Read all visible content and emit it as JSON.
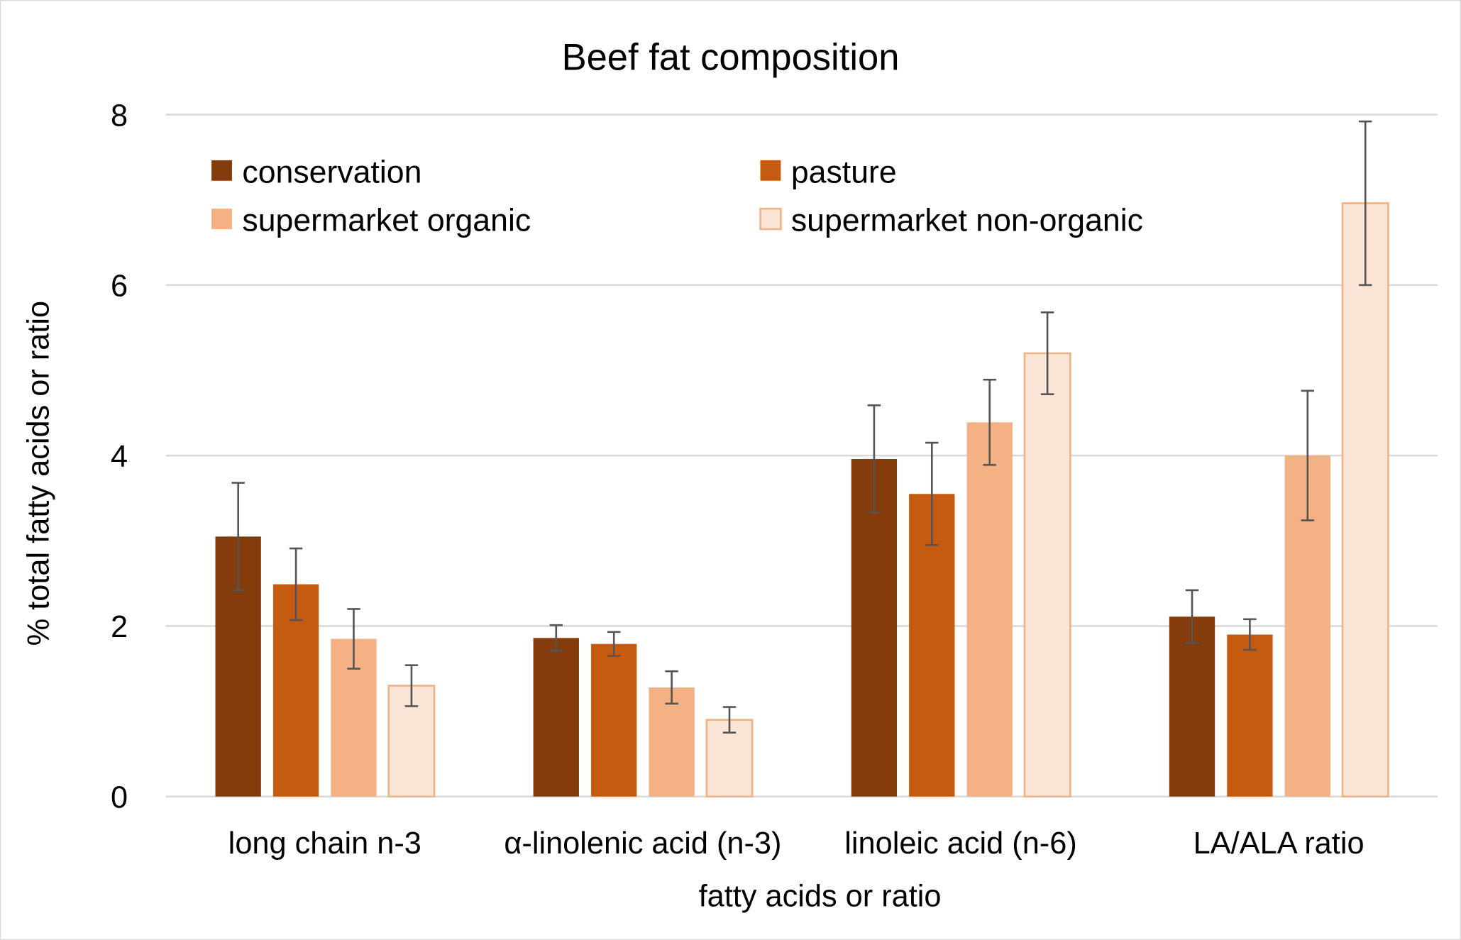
{
  "chart_data": {
    "type": "bar",
    "title": "Beef fat composition",
    "xlabel": "fatty acids or ratio",
    "ylabel": "% total fatty acids or ratio",
    "ylim": [
      0,
      8
    ],
    "yticks": [
      0,
      2,
      4,
      6,
      8
    ],
    "grid": true,
    "legend_placement": "top",
    "categories": [
      "long chain n-3",
      "α-linolenic acid (n-3)",
      "linoleic acid (n-6)",
      "LA/ALA ratio"
    ],
    "series": [
      {
        "name": "conservation",
        "color": "#843C0C",
        "values": [
          3.05,
          1.86,
          3.96,
          2.11
        ],
        "errors": [
          0.63,
          0.15,
          0.63,
          0.31
        ]
      },
      {
        "name": "pasture",
        "color": "#C55A11",
        "values": [
          2.49,
          1.79,
          3.55,
          1.9
        ],
        "errors": [
          0.42,
          0.14,
          0.6,
          0.18
        ]
      },
      {
        "name": "supermarket organic",
        "color": "#F4B183",
        "values": [
          1.85,
          1.28,
          4.39,
          4.0
        ],
        "errors": [
          0.35,
          0.19,
          0.5,
          0.76
        ]
      },
      {
        "name": "supermarket non-organic",
        "color": "#FBE5D6",
        "stroke": "#F4B183",
        "values": [
          1.3,
          0.9,
          5.2,
          6.96
        ],
        "errors": [
          0.24,
          0.15,
          0.48,
          0.96
        ]
      }
    ]
  }
}
